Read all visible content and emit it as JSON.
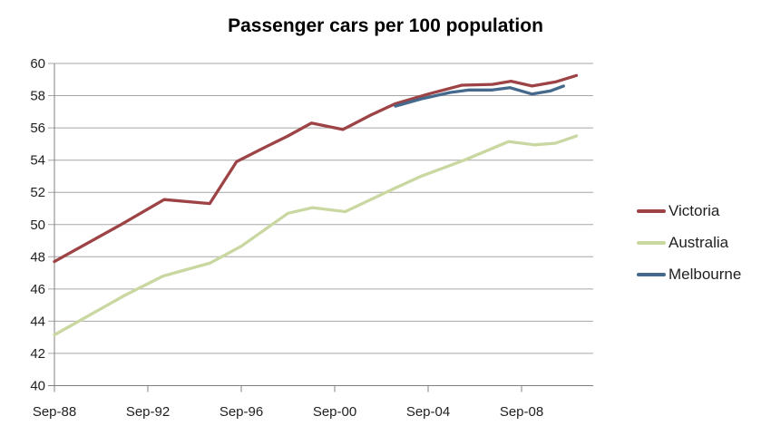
{
  "chart_data": {
    "type": "line",
    "title": "Passenger cars per 100 population",
    "grid": true,
    "legend_position": "right",
    "y_axis": {
      "min": 40,
      "max": 60,
      "step": 2,
      "tick_labels": [
        "60",
        "58",
        "56",
        "54",
        "52",
        "50",
        "48",
        "46",
        "44",
        "42",
        "40"
      ]
    },
    "x_axis": {
      "tick_labels": [
        "Sep-88",
        "Sep-92",
        "Sep-96",
        "Sep-00",
        "Sep-04",
        "Sep-08"
      ],
      "tick_years": [
        1988.75,
        1992.75,
        1996.75,
        2000.75,
        2004.75,
        2008.75
      ]
    },
    "series": [
      {
        "name": "Victoria",
        "color": "#9D4345",
        "points": [
          [
            1988.75,
            47.7
          ],
          [
            1991.6,
            50.0
          ],
          [
            1993.45,
            51.55
          ],
          [
            1995.4,
            51.3
          ],
          [
            1996.55,
            53.9
          ],
          [
            1997.7,
            54.75
          ],
          [
            1998.75,
            55.5
          ],
          [
            1999.75,
            56.3
          ],
          [
            2001.1,
            55.9
          ],
          [
            2002.3,
            56.8
          ],
          [
            2003.35,
            57.5
          ],
          [
            2004.75,
            58.1
          ],
          [
            2006.2,
            58.65
          ],
          [
            2007.5,
            58.7
          ],
          [
            2008.3,
            58.9
          ],
          [
            2009.2,
            58.6
          ],
          [
            2010.2,
            58.85
          ],
          [
            2011.1,
            59.25
          ]
        ]
      },
      {
        "name": "Australia",
        "color": "#C9D7A0",
        "points": [
          [
            1988.75,
            43.15
          ],
          [
            1991.75,
            45.6
          ],
          [
            1993.4,
            46.8
          ],
          [
            1995.4,
            47.6
          ],
          [
            1996.75,
            48.65
          ],
          [
            1998.75,
            50.7
          ],
          [
            1999.8,
            51.05
          ],
          [
            2001.2,
            50.8
          ],
          [
            2003.1,
            52.1
          ],
          [
            2004.45,
            53.0
          ],
          [
            2006.3,
            54.0
          ],
          [
            2008.2,
            55.15
          ],
          [
            2009.3,
            54.95
          ],
          [
            2010.2,
            55.05
          ],
          [
            2011.1,
            55.5
          ]
        ]
      },
      {
        "name": "Melbourne",
        "color": "#44698D",
        "points": [
          [
            2003.35,
            57.35
          ],
          [
            2004.45,
            57.8
          ],
          [
            2005.7,
            58.2
          ],
          [
            2006.5,
            58.35
          ],
          [
            2007.5,
            58.35
          ],
          [
            2008.25,
            58.5
          ],
          [
            2009.2,
            58.1
          ],
          [
            2010.0,
            58.3
          ],
          [
            2010.55,
            58.6
          ]
        ]
      }
    ]
  }
}
